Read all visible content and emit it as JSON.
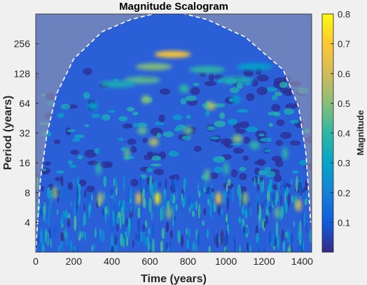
{
  "chart_data": {
    "type": "heatmap",
    "title": "Magnitude Scalogram",
    "xlabel": "Time (years)",
    "ylabel": "Period (years)",
    "xlim": [
      0,
      1450
    ],
    "ylim_period": [
      2,
      512
    ],
    "y_scale": "log2",
    "x_ticks": [
      0,
      200,
      400,
      600,
      800,
      1000,
      1200,
      1400
    ],
    "x_tick_labels": [
      "0",
      "200",
      "400",
      "600",
      "800",
      "1000",
      "1200",
      "1400"
    ],
    "y_ticks": [
      4,
      8,
      16,
      32,
      64,
      128,
      256
    ],
    "y_tick_labels": [
      "4",
      "8",
      "16",
      "32",
      "64",
      "128",
      "256"
    ],
    "colorbar": {
      "label": "Magnitude",
      "range": [
        0,
        0.8
      ],
      "ticks": [
        0.1,
        0.2,
        0.3,
        0.4,
        0.5,
        0.6,
        0.7,
        0.8
      ],
      "tick_labels": [
        "0.1",
        "0.2",
        "0.3",
        "0.4",
        "0.5",
        "0.6",
        "0.7",
        "0.8"
      ],
      "colormap": "parula"
    },
    "cone_of_influence": {
      "style": "white dashed line",
      "points": [
        {
          "x": 0,
          "period": 2
        },
        {
          "x": 25,
          "period": 11
        },
        {
          "x": 60,
          "period": 32
        },
        {
          "x": 110,
          "period": 80
        },
        {
          "x": 200,
          "period": 180
        },
        {
          "x": 350,
          "period": 340
        },
        {
          "x": 500,
          "period": 450
        },
        {
          "x": 640,
          "period": 525
        },
        {
          "x": 760,
          "period": 525
        },
        {
          "x": 900,
          "period": 450
        },
        {
          "x": 1100,
          "period": 300
        },
        {
          "x": 1300,
          "period": 140
        },
        {
          "x": 1380,
          "period": 60
        },
        {
          "x": 1420,
          "period": 20
        },
        {
          "x": 1445,
          "period": 4
        }
      ]
    },
    "features": [
      {
        "x": 720,
        "period": 200,
        "magnitude": 0.7
      },
      {
        "x": 620,
        "period": 150,
        "magnitude": 0.5
      },
      {
        "x": 560,
        "period": 110,
        "magnitude": 0.45
      },
      {
        "x": 430,
        "period": 100,
        "magnitude": 0.35
      },
      {
        "x": 900,
        "period": 140,
        "magnitude": 0.4
      },
      {
        "x": 1050,
        "period": 110,
        "magnitude": 0.35
      },
      {
        "x": 1150,
        "period": 150,
        "magnitude": 0.3
      },
      {
        "x": 580,
        "period": 70,
        "magnitude": 0.5
      },
      {
        "x": 920,
        "period": 60,
        "magnitude": 0.55
      },
      {
        "x": 780,
        "period": 90,
        "magnitude": 0.4
      },
      {
        "x": 1050,
        "period": 70,
        "magnitude": 0.3
      },
      {
        "x": 300,
        "period": 60,
        "magnitude": 0.3
      },
      {
        "x": 620,
        "period": 26,
        "magnitude": 0.55
      },
      {
        "x": 560,
        "period": 34,
        "magnitude": 0.45
      },
      {
        "x": 800,
        "period": 34,
        "magnitude": 0.45
      },
      {
        "x": 1060,
        "period": 28,
        "magnitude": 0.5
      },
      {
        "x": 1150,
        "period": 24,
        "magnitude": 0.4
      },
      {
        "x": 1310,
        "period": 20,
        "magnitude": 0.4
      },
      {
        "x": 480,
        "period": 20,
        "magnitude": 0.45
      },
      {
        "x": 330,
        "period": 14,
        "magnitude": 0.4
      },
      {
        "x": 900,
        "period": 12,
        "magnitude": 0.45
      },
      {
        "x": 1000,
        "period": 14,
        "magnitude": 0.4
      },
      {
        "x": 640,
        "period": 7,
        "magnitude": 0.8
      },
      {
        "x": 540,
        "period": 7,
        "magnitude": 0.65
      },
      {
        "x": 960,
        "period": 7,
        "magnitude": 0.7
      },
      {
        "x": 340,
        "period": 7,
        "magnitude": 0.55
      },
      {
        "x": 1100,
        "period": 7,
        "magnitude": 0.5
      },
      {
        "x": 1380,
        "period": 6,
        "magnitude": 0.65
      },
      {
        "x": 100,
        "period": 8,
        "magnitude": 0.5
      },
      {
        "x": 700,
        "period": 5,
        "magnitude": 0.5
      },
      {
        "x": 1270,
        "period": 5,
        "magnitude": 0.45
      }
    ]
  }
}
